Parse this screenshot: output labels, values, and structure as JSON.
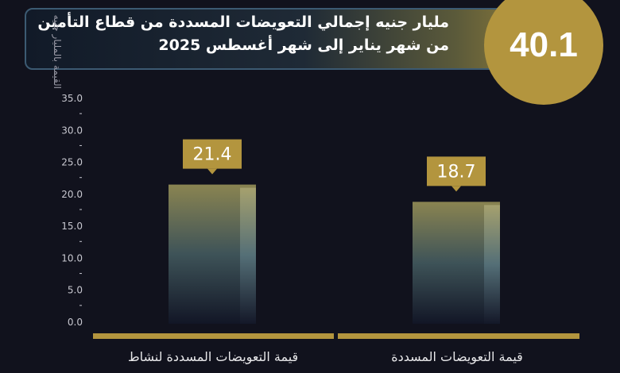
{
  "header": {
    "total": "40.1",
    "title": "مليار جنيه إجمالي التعويضات المسددة من قطاع التأمين من شهر  يناير إلى شهر أغسطس 2025"
  },
  "chart_data": {
    "type": "bar",
    "ylabel": "القيمة بالمليار جنيه",
    "ylim": [
      0,
      35
    ],
    "yticks": [
      "0.0",
      "5.0",
      "10.0",
      "15.0",
      "20.0",
      "25.0",
      "30.0",
      "35.0"
    ],
    "categories": [
      "قيمة التعويضات المسددة لنشاط",
      "قيمة التعويضات المسددة"
    ],
    "values": [
      21.4,
      18.7
    ],
    "data_labels": [
      "21.4",
      "18.7"
    ],
    "colors": {
      "accent": "#b3953e",
      "background": "#11121d"
    }
  }
}
